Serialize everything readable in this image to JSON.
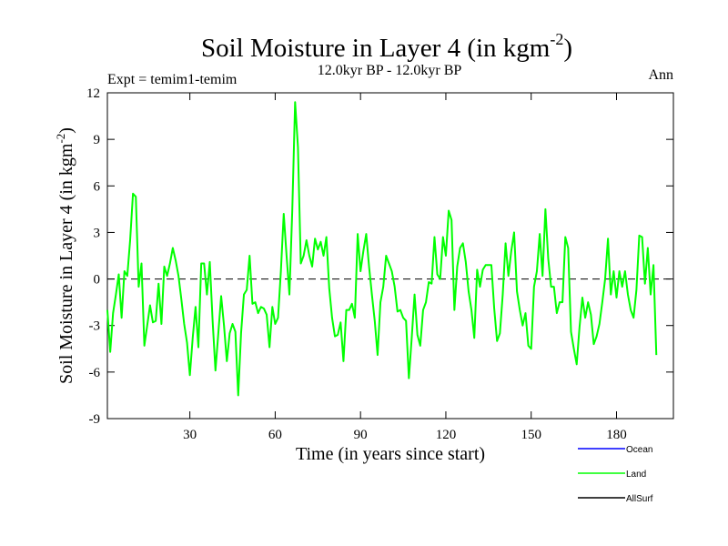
{
  "chart_data": {
    "type": "line",
    "title": "Soil Moisture in Layer 4 (in kgm",
    "title_superscript": "-2",
    "title_suffix": ")",
    "subtitle": "12.0kyr BP - 12.0kyr BP",
    "expt_label": "Expt = temim1-temim",
    "season_label": "Ann",
    "xlabel": "Time (in years since start)",
    "ylabel": "Soil Moisture in Layer 4 (in kgm",
    "ylabel_superscript": "-2",
    "ylabel_suffix": ")",
    "xlim": [
      1,
      200
    ],
    "ylim": [
      -9,
      12
    ],
    "x_ticks": [
      30,
      60,
      90,
      120,
      150,
      180
    ],
    "y_ticks": [
      -9,
      -6,
      -3,
      0,
      3,
      6,
      9,
      12
    ],
    "zero_line": true,
    "legend": [
      {
        "name": "Ocean",
        "color": "#0000ff"
      },
      {
        "name": "Land",
        "color": "#00ff00"
      },
      {
        "name": "AllSurf",
        "color": "#000000"
      }
    ],
    "series": [
      {
        "name": "Land",
        "color": "#00ff00",
        "x_start": 1,
        "x_step": 1,
        "values": [
          -2.0,
          -4.7,
          -2.2,
          -1.0,
          0.3,
          -2.5,
          0.5,
          0.2,
          2.5,
          5.5,
          5.3,
          -0.5,
          1.0,
          -4.3,
          -3.0,
          -1.7,
          -2.8,
          -2.7,
          -0.3,
          -2.9,
          0.8,
          0.2,
          1.0,
          2.0,
          1.2,
          0.2,
          -1.3,
          -2.9,
          -4.1,
          -6.2,
          -3.8,
          -1.8,
          -4.4,
          1.0,
          1.0,
          -1.0,
          1.1,
          -2.7,
          -5.9,
          -3.5,
          -1.1,
          -3.0,
          -5.3,
          -3.5,
          -2.9,
          -3.4,
          -7.5,
          -3.5,
          -1.0,
          -0.7,
          1.5,
          -1.6,
          -1.5,
          -2.2,
          -1.8,
          -1.9,
          -2.3,
          -4.4,
          -1.8,
          -2.9,
          -2.5,
          0.5,
          4.2,
          1.5,
          -1.0,
          4.4,
          11.4,
          8.5,
          1.0,
          1.5,
          2.5,
          1.5,
          0.8,
          2.6,
          1.9,
          2.4,
          1.5,
          2.7,
          -0.6,
          -2.5,
          -3.7,
          -3.6,
          -2.8,
          -5.3,
          -2.0,
          -2.0,
          -1.6,
          -2.5,
          2.9,
          0.5,
          1.8,
          2.9,
          0.8,
          -1.0,
          -2.7,
          -4.9,
          -1.5,
          -0.5,
          1.5,
          1.0,
          0.5,
          -0.5,
          -2.1,
          -2.0,
          -2.5,
          -2.7,
          -6.4,
          -3.8,
          -1.0,
          -3.6,
          -4.3,
          -2.0,
          -1.5,
          -0.2,
          -0.3,
          2.7,
          0.3,
          0.0,
          2.7,
          1.5,
          4.4,
          3.8,
          -2.0,
          0.8,
          2.0,
          2.3,
          1.1,
          -0.8,
          -2.0,
          -3.8,
          0.6,
          -0.5,
          0.6,
          0.9,
          0.9,
          0.9,
          -1.9,
          -4.0,
          -3.5,
          -1.0,
          2.3,
          0.2,
          1.8,
          3.0,
          -0.8,
          -2.0,
          -3.0,
          -2.2,
          -4.3,
          -4.5,
          -0.5,
          0.5,
          2.9,
          0.2,
          4.5,
          1.3,
          -0.5,
          -0.5,
          -2.2,
          -1.5,
          -1.5,
          2.7,
          2.0,
          -3.4,
          -4.5,
          -5.5,
          -3.1,
          -1.2,
          -2.5,
          -1.5,
          -2.3,
          -4.2,
          -3.7,
          -2.9,
          -1.5,
          0.0,
          2.6,
          -1.0,
          0.5,
          -1.2,
          0.5,
          -0.5,
          0.5,
          -1.0,
          -2.0,
          -2.5,
          -0.7,
          2.8,
          2.7,
          -0.3,
          2.0,
          -1.0,
          0.9,
          -4.9
        ]
      }
    ]
  }
}
